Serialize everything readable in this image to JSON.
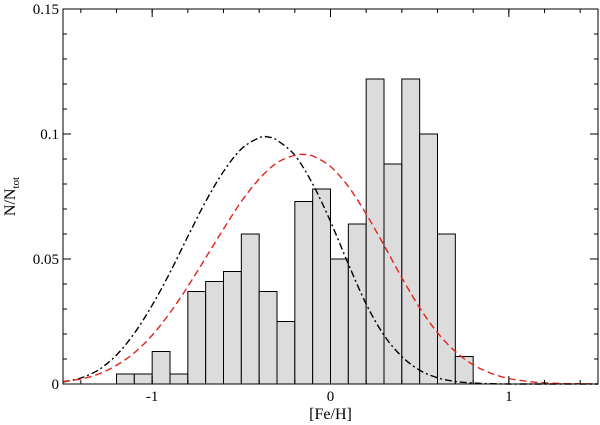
{
  "chart_data": {
    "type": "bar",
    "xlabel": "[Fe/H]",
    "ylabel": {
      "main": "N/N",
      "sub": "tot"
    },
    "xlim": [
      -1.5,
      1.5
    ],
    "ylim": [
      0,
      0.15
    ],
    "x_ticks": [
      -1,
      0,
      1
    ],
    "x_tick_labels": [
      "-1",
      "0",
      "1"
    ],
    "y_ticks": [
      0,
      0.05,
      0.1,
      0.15
    ],
    "y_tick_labels": [
      "0",
      "0.05",
      "0.1",
      "0.15"
    ],
    "x_minor_step": 0.2,
    "y_minor_step": 0.01,
    "grid": false,
    "histogram": {
      "bin_width": 0.1,
      "fill": "#dcdcdc",
      "stroke": "#000000",
      "bins": [
        {
          "left": -1.2,
          "value": 0.004
        },
        {
          "left": -1.1,
          "value": 0.004
        },
        {
          "left": -1.0,
          "value": 0.013
        },
        {
          "left": -0.9,
          "value": 0.004
        },
        {
          "left": -0.8,
          "value": 0.037
        },
        {
          "left": -0.7,
          "value": 0.041
        },
        {
          "left": -0.6,
          "value": 0.045
        },
        {
          "left": -0.5,
          "value": 0.06
        },
        {
          "left": -0.4,
          "value": 0.037
        },
        {
          "left": -0.3,
          "value": 0.025
        },
        {
          "left": -0.2,
          "value": 0.073
        },
        {
          "left": -0.1,
          "value": 0.078
        },
        {
          "left": 0.0,
          "value": 0.05
        },
        {
          "left": 0.1,
          "value": 0.064
        },
        {
          "left": 0.2,
          "value": 0.122
        },
        {
          "left": 0.3,
          "value": 0.088
        },
        {
          "left": 0.4,
          "value": 0.122
        },
        {
          "left": 0.5,
          "value": 0.1
        },
        {
          "left": 0.6,
          "value": 0.06
        },
        {
          "left": 0.7,
          "value": 0.011
        }
      ]
    },
    "series": [
      {
        "style": "dash-dot",
        "color": "#000000",
        "x": [
          -1.5,
          -1.4,
          -1.3,
          -1.2,
          -1.1,
          -1.0,
          -0.9,
          -0.8,
          -0.7,
          -0.6,
          -0.5,
          -0.4,
          -0.35,
          -0.3,
          -0.2,
          -0.1,
          0.0,
          0.1,
          0.2,
          0.3,
          0.4,
          0.5,
          0.6,
          0.7,
          0.8,
          0.9,
          1.0,
          1.1,
          1.2,
          1.3,
          1.4,
          1.5
        ],
        "y": [
          0.0008,
          0.0024,
          0.0057,
          0.0116,
          0.0203,
          0.0315,
          0.0446,
          0.059,
          0.073,
          0.085,
          0.094,
          0.0985,
          0.0988,
          0.0975,
          0.0915,
          0.08,
          0.065,
          0.048,
          0.032,
          0.0195,
          0.011,
          0.0055,
          0.0025,
          0.001,
          0.0004,
          0.0001,
          0,
          0,
          0,
          0,
          0,
          0
        ]
      },
      {
        "style": "dashed",
        "color": "#e2231a",
        "x": [
          -1.5,
          -1.4,
          -1.3,
          -1.2,
          -1.1,
          -1.0,
          -0.9,
          -0.8,
          -0.7,
          -0.6,
          -0.5,
          -0.4,
          -0.3,
          -0.2,
          -0.15,
          -0.1,
          0.0,
          0.1,
          0.2,
          0.3,
          0.4,
          0.5,
          0.6,
          0.7,
          0.8,
          0.9,
          1.0,
          1.1,
          1.2,
          1.3,
          1.4,
          1.5
        ],
        "y": [
          0.001,
          0.002,
          0.004,
          0.0075,
          0.0125,
          0.0195,
          0.0285,
          0.039,
          0.0505,
          0.062,
          0.073,
          0.082,
          0.0885,
          0.0915,
          0.0918,
          0.0912,
          0.087,
          0.079,
          0.068,
          0.0555,
          0.0425,
          0.0305,
          0.0205,
          0.013,
          0.0077,
          0.0043,
          0.0022,
          0.0011,
          0.0005,
          0.0002,
          0.0001,
          0
        ]
      }
    ]
  }
}
